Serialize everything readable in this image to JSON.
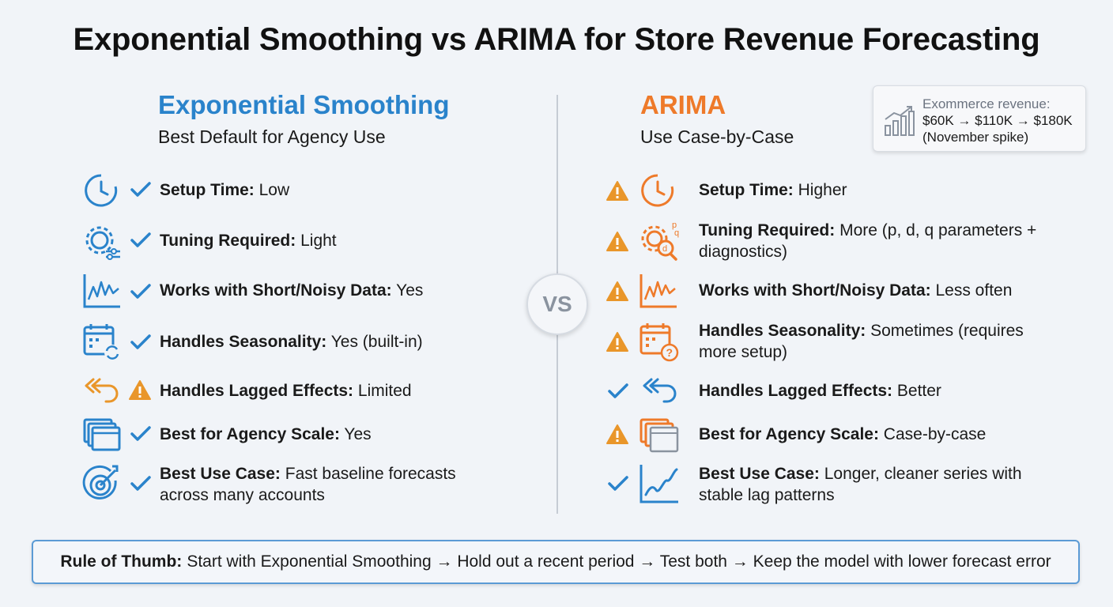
{
  "title": "Exponential Smoothing vs ARIMA for Store Revenue Forecasting",
  "left": {
    "name": "Exponential Smoothing",
    "subtitle": "Best Default for Agency Use",
    "rows": [
      {
        "icon": "clock-icon",
        "status": "check",
        "label": "Setup Time:",
        "value": " Low"
      },
      {
        "icon": "gears-icon",
        "status": "check",
        "label": "Tuning Required:",
        "value": " Light"
      },
      {
        "icon": "noisy-line-icon",
        "status": "check",
        "label": "Works with Short/Noisy Data:",
        "value": " Yes"
      },
      {
        "icon": "calendar-refresh-icon",
        "status": "check",
        "label": "Handles Seasonality:",
        "value": " Yes (built-in)"
      },
      {
        "icon": "return-arrows-icon",
        "status": "warning",
        "label": "Handles Lagged Effects:",
        "value": " Limited"
      },
      {
        "icon": "windows-stack-icon",
        "status": "check",
        "label": "Best for Agency Scale:",
        "value": " Yes"
      },
      {
        "icon": "target-icon",
        "status": "check",
        "label": "Best Use Case:",
        "value": " Fast baseline forecasts across many accounts"
      }
    ]
  },
  "right": {
    "name": "ARIMA",
    "subtitle": "Use Case-by-Case",
    "rows": [
      {
        "icon": "clock-icon",
        "status": "warning",
        "label": "Setup Time:",
        "value": " Higher"
      },
      {
        "icon": "gear-magnifier-icon",
        "status": "warning",
        "label": "Tuning Required:",
        "value": " More (p, d, q parameters + diagnostics)"
      },
      {
        "icon": "noisy-line-icon",
        "status": "warning",
        "label": "Works with Short/Noisy Data:",
        "value": " Less often"
      },
      {
        "icon": "calendar-question-icon",
        "status": "warning",
        "label": "Handles Seasonality:",
        "value": " Sometimes (requires more setup)"
      },
      {
        "icon": "return-arrows-icon",
        "status": "check",
        "label": "Handles Lagged Effects:",
        "value": " Better"
      },
      {
        "icon": "windows-stack-icon",
        "status": "warning",
        "label": "Best for Agency Scale:",
        "value": " Case-by-case"
      },
      {
        "icon": "trend-line-icon",
        "status": "check",
        "label": "Best Use Case:",
        "value": " Longer, cleaner series with stable lag patterns"
      }
    ]
  },
  "vs": "VS",
  "callout": {
    "line1": "Exommerce revenue:",
    "line2": "$60K → $110K → $180K",
    "line3": "(November spike)"
  },
  "footer": {
    "label": "Rule of Thumb:",
    "text": "Start with Exponential Smoothing → Hold out a recent period → Test both → Keep the model with lower forecast error"
  },
  "colors": {
    "blue": "#2a83cb",
    "orange": "#ee7a2a",
    "warning": "#e9962a"
  }
}
